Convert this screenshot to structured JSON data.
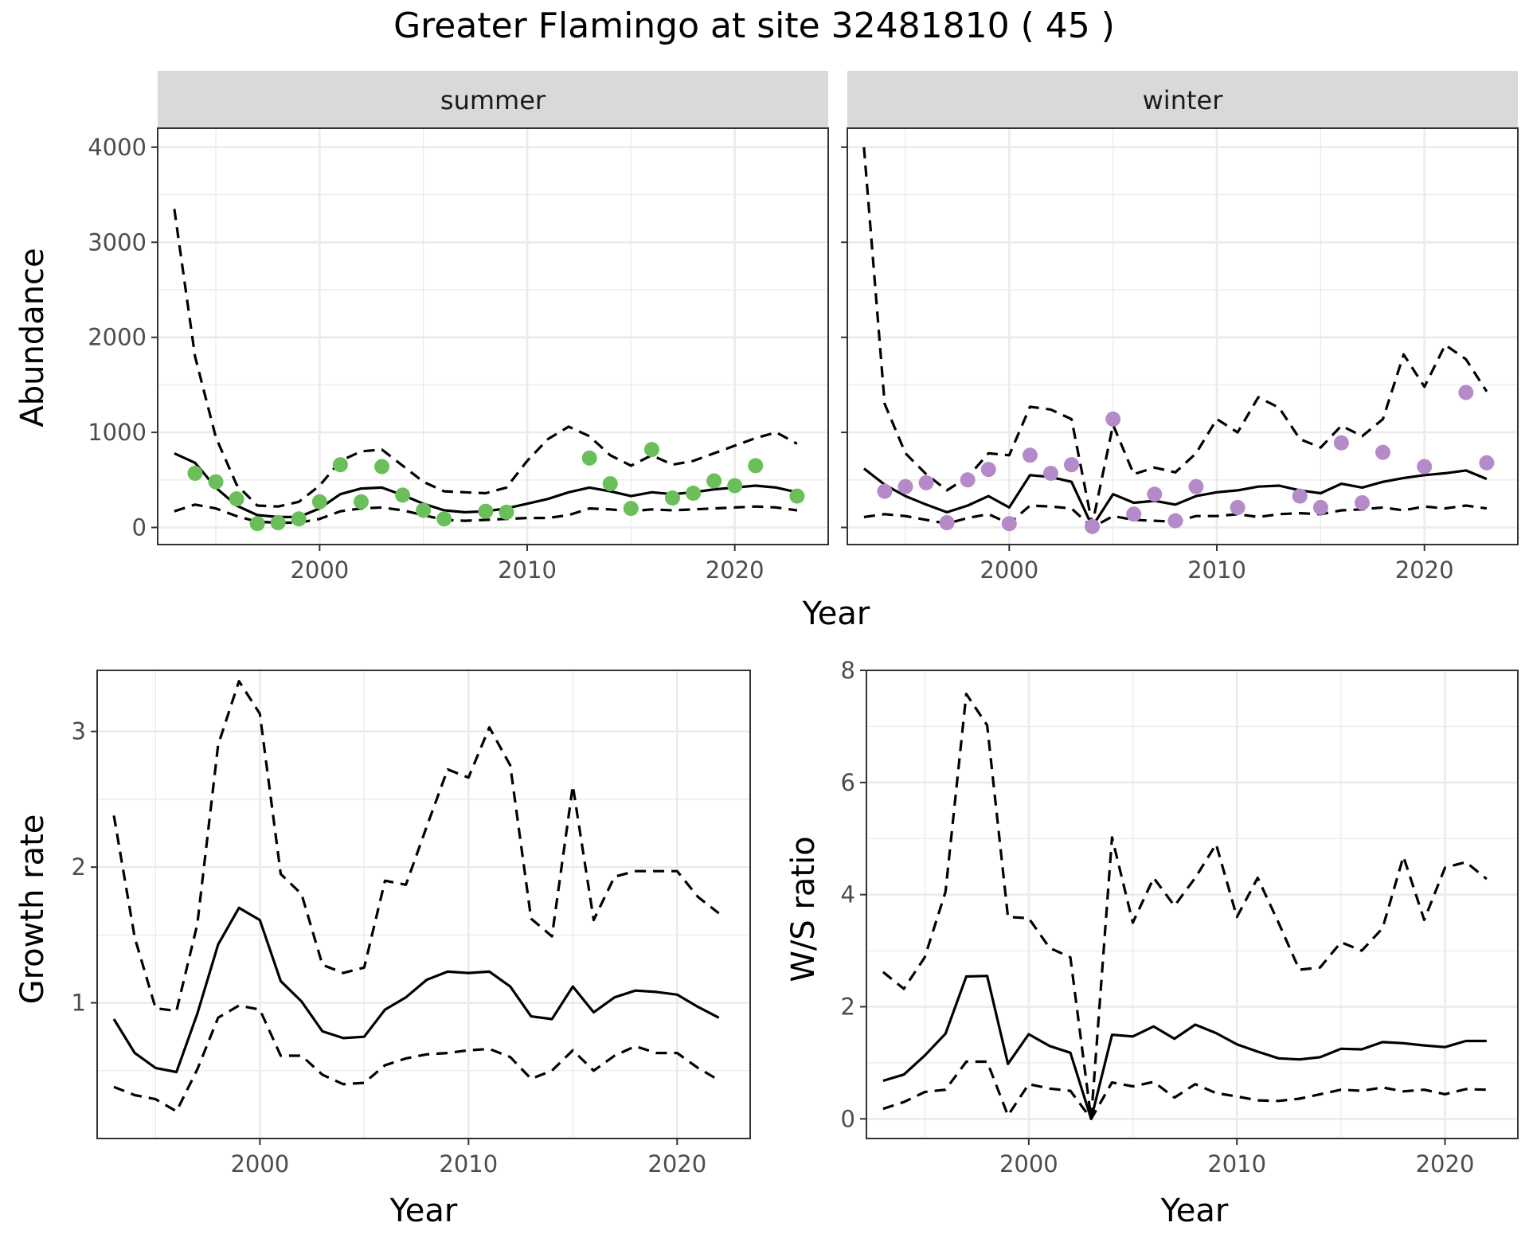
{
  "title": "Greater Flamingo at site 32481810 ( 45 )",
  "colors": {
    "summer": "#6abf5a",
    "winter": "#b58ac9"
  },
  "chart_data": [
    {
      "type": "line",
      "panel": "summer",
      "strip_label": "summer",
      "xlabel": "Year",
      "ylabel": "Abundance",
      "xlim": [
        1992.2,
        2024.5
      ],
      "ylim": [
        -180,
        4200
      ],
      "x_ticks": [
        2000,
        2010,
        2020
      ],
      "y_ticks": [
        0,
        1000,
        2000,
        3000,
        4000
      ],
      "x_ticks_labels": [
        "2000",
        "2010",
        "2020"
      ],
      "y_ticks_labels": [
        "0",
        "1000",
        "2000",
        "3000",
        "4000"
      ],
      "grid": true,
      "x": [
        1993,
        1994,
        1995,
        1996,
        1997,
        1998,
        1999,
        2000,
        2001,
        2002,
        2003,
        2004,
        2005,
        2006,
        2007,
        2008,
        2009,
        2010,
        2011,
        2012,
        2013,
        2014,
        2015,
        2016,
        2017,
        2018,
        2019,
        2020,
        2021,
        2022,
        2023
      ],
      "series": [
        {
          "name": "estimate",
          "style": "solid",
          "values": [
            780,
            680,
            420,
            230,
            130,
            110,
            110,
            200,
            350,
            410,
            420,
            340,
            250,
            180,
            160,
            170,
            200,
            250,
            300,
            370,
            420,
            380,
            330,
            370,
            350,
            370,
            400,
            420,
            440,
            420,
            370
          ]
        },
        {
          "name": "upper",
          "style": "dashed",
          "values": [
            3350,
            1800,
            950,
            450,
            230,
            220,
            270,
            440,
            700,
            800,
            820,
            650,
            480,
            380,
            370,
            360,
            420,
            700,
            930,
            1060,
            960,
            760,
            650,
            760,
            660,
            700,
            780,
            860,
            940,
            1000,
            880
          ]
        },
        {
          "name": "lower",
          "style": "dashed",
          "values": [
            170,
            240,
            200,
            120,
            60,
            50,
            50,
            90,
            170,
            200,
            210,
            180,
            130,
            80,
            70,
            80,
            90,
            100,
            100,
            130,
            200,
            190,
            170,
            190,
            180,
            190,
            200,
            210,
            220,
            210,
            180
          ]
        }
      ],
      "points": [
        {
          "x": 1994,
          "y": 570
        },
        {
          "x": 1995,
          "y": 480
        },
        {
          "x": 1996,
          "y": 300
        },
        {
          "x": 1997,
          "y": 40
        },
        {
          "x": 1998,
          "y": 50
        },
        {
          "x": 1999,
          "y": 90
        },
        {
          "x": 2000,
          "y": 270
        },
        {
          "x": 2001,
          "y": 660
        },
        {
          "x": 2002,
          "y": 270
        },
        {
          "x": 2003,
          "y": 640
        },
        {
          "x": 2004,
          "y": 340
        },
        {
          "x": 2005,
          "y": 180
        },
        {
          "x": 2006,
          "y": 90
        },
        {
          "x": 2008,
          "y": 170
        },
        {
          "x": 2009,
          "y": 160
        },
        {
          "x": 2013,
          "y": 730
        },
        {
          "x": 2014,
          "y": 460
        },
        {
          "x": 2015,
          "y": 200
        },
        {
          "x": 2016,
          "y": 820
        },
        {
          "x": 2017,
          "y": 310
        },
        {
          "x": 2018,
          "y": 360
        },
        {
          "x": 2019,
          "y": 490
        },
        {
          "x": 2020,
          "y": 440
        },
        {
          "x": 2021,
          "y": 650
        },
        {
          "x": 2023,
          "y": 330
        }
      ]
    },
    {
      "type": "line",
      "panel": "winter",
      "strip_label": "winter",
      "xlabel": "Year",
      "ylabel": "",
      "xlim": [
        1992.2,
        2024.5
      ],
      "ylim": [
        -180,
        4200
      ],
      "x_ticks": [
        2000,
        2010,
        2020
      ],
      "y_ticks": [
        0,
        1000,
        2000,
        3000,
        4000
      ],
      "x_ticks_labels": [
        "2000",
        "2010",
        "2020"
      ],
      "y_ticks_labels": [],
      "grid": true,
      "x": [
        1993,
        1994,
        1995,
        1996,
        1997,
        1998,
        1999,
        2000,
        2001,
        2002,
        2003,
        2004,
        2005,
        2006,
        2007,
        2008,
        2009,
        2010,
        2011,
        2012,
        2013,
        2014,
        2015,
        2016,
        2017,
        2018,
        2019,
        2020,
        2021,
        2022,
        2023
      ],
      "series": [
        {
          "name": "estimate",
          "style": "solid",
          "values": [
            620,
            450,
            330,
            240,
            160,
            230,
            330,
            210,
            550,
            530,
            480,
            10,
            350,
            260,
            280,
            240,
            330,
            370,
            390,
            430,
            440,
            390,
            360,
            460,
            420,
            480,
            520,
            550,
            570,
            600,
            510
          ]
        },
        {
          "name": "upper",
          "style": "dashed",
          "values": [
            4000,
            1300,
            780,
            560,
            390,
            530,
            780,
            760,
            1270,
            1240,
            1140,
            30,
            1080,
            560,
            630,
            580,
            780,
            1140,
            1000,
            1370,
            1260,
            930,
            840,
            1070,
            960,
            1140,
            1820,
            1480,
            1920,
            1770,
            1430
          ]
        },
        {
          "name": "lower",
          "style": "dashed",
          "values": [
            110,
            140,
            120,
            80,
            40,
            100,
            140,
            40,
            230,
            220,
            200,
            0,
            120,
            80,
            70,
            60,
            120,
            120,
            140,
            110,
            140,
            150,
            140,
            180,
            190,
            210,
            180,
            220,
            200,
            230,
            200
          ]
        }
      ],
      "points": [
        {
          "x": 1994,
          "y": 380
        },
        {
          "x": 1995,
          "y": 430
        },
        {
          "x": 1996,
          "y": 470
        },
        {
          "x": 1997,
          "y": 50
        },
        {
          "x": 1998,
          "y": 500
        },
        {
          "x": 1999,
          "y": 610
        },
        {
          "x": 2000,
          "y": 40
        },
        {
          "x": 2001,
          "y": 760
        },
        {
          "x": 2002,
          "y": 570
        },
        {
          "x": 2003,
          "y": 660
        },
        {
          "x": 2004,
          "y": 10
        },
        {
          "x": 2005,
          "y": 1140
        },
        {
          "x": 2006,
          "y": 140
        },
        {
          "x": 2007,
          "y": 350
        },
        {
          "x": 2008,
          "y": 70
        },
        {
          "x": 2009,
          "y": 430
        },
        {
          "x": 2011,
          "y": 210
        },
        {
          "x": 2014,
          "y": 330
        },
        {
          "x": 2015,
          "y": 210
        },
        {
          "x": 2016,
          "y": 890
        },
        {
          "x": 2017,
          "y": 260
        },
        {
          "x": 2018,
          "y": 790
        },
        {
          "x": 2020,
          "y": 640
        },
        {
          "x": 2022,
          "y": 1420
        },
        {
          "x": 2023,
          "y": 680
        }
      ]
    },
    {
      "type": "line",
      "panel": "growth",
      "xlabel": "Year",
      "ylabel": "Growth rate",
      "xlim": [
        1992.2,
        2023.5
      ],
      "ylim": [
        0.0,
        3.45
      ],
      "x_ticks": [
        2000,
        2010,
        2020
      ],
      "y_ticks": [
        1,
        2,
        3
      ],
      "x_ticks_labels": [
        "2000",
        "2010",
        "2020"
      ],
      "y_ticks_labels": [
        "1",
        "2",
        "3"
      ],
      "grid": true,
      "x": [
        1993,
        1994,
        1995,
        1996,
        1997,
        1998,
        1999,
        2000,
        2001,
        2002,
        2003,
        2004,
        2005,
        2006,
        2007,
        2008,
        2009,
        2010,
        2011,
        2012,
        2013,
        2014,
        2015,
        2016,
        2017,
        2018,
        2019,
        2020,
        2021,
        2022
      ],
      "series": [
        {
          "name": "estimate",
          "style": "solid",
          "values": [
            0.88,
            0.63,
            0.52,
            0.49,
            0.92,
            1.43,
            1.7,
            1.61,
            1.16,
            1.01,
            0.79,
            0.74,
            0.75,
            0.95,
            1.04,
            1.17,
            1.23,
            1.22,
            1.23,
            1.12,
            0.9,
            0.88,
            1.12,
            0.93,
            1.04,
            1.09,
            1.08,
            1.06,
            0.97,
            0.89
          ]
        },
        {
          "name": "upper",
          "style": "dashed",
          "values": [
            2.38,
            1.48,
            0.96,
            0.94,
            1.58,
            2.9,
            3.37,
            3.13,
            1.95,
            1.8,
            1.28,
            1.22,
            1.26,
            1.9,
            1.87,
            2.3,
            2.72,
            2.66,
            3.03,
            2.75,
            1.62,
            1.49,
            2.6,
            1.61,
            1.93,
            1.97,
            1.97,
            1.97,
            1.78,
            1.66
          ]
        },
        {
          "name": "lower",
          "style": "dashed",
          "values": [
            0.38,
            0.32,
            0.29,
            0.2,
            0.51,
            0.89,
            0.98,
            0.95,
            0.61,
            0.61,
            0.47,
            0.4,
            0.41,
            0.54,
            0.59,
            0.62,
            0.63,
            0.65,
            0.66,
            0.6,
            0.44,
            0.5,
            0.65,
            0.5,
            0.61,
            0.68,
            0.63,
            0.63,
            0.52,
            0.43
          ]
        }
      ]
    },
    {
      "type": "line",
      "panel": "ws_ratio",
      "xlabel": "Year",
      "ylabel": "W/S ratio",
      "xlim": [
        1992.2,
        2023.5
      ],
      "ylim": [
        -0.35,
        8.0
      ],
      "x_ticks": [
        2000,
        2010,
        2020
      ],
      "y_ticks": [
        0,
        2,
        4,
        6,
        8
      ],
      "x_ticks_labels": [
        "2000",
        "2010",
        "2020"
      ],
      "y_ticks_labels": [
        "0",
        "2",
        "4",
        "6",
        "8"
      ],
      "grid": true,
      "x": [
        1993,
        1994,
        1995,
        1996,
        1997,
        1998,
        1999,
        2000,
        2001,
        2002,
        2003,
        2004,
        2005,
        2006,
        2007,
        2008,
        2009,
        2010,
        2011,
        2012,
        2013,
        2014,
        2015,
        2016,
        2017,
        2018,
        2019,
        2020,
        2021,
        2022
      ],
      "series": [
        {
          "name": "estimate",
          "style": "solid",
          "values": [
            0.68,
            0.79,
            1.13,
            1.52,
            2.54,
            2.55,
            0.98,
            1.51,
            1.3,
            1.18,
            0.0,
            1.5,
            1.47,
            1.65,
            1.43,
            1.68,
            1.53,
            1.33,
            1.2,
            1.08,
            1.06,
            1.1,
            1.25,
            1.24,
            1.37,
            1.35,
            1.31,
            1.28,
            1.39,
            1.39
          ]
        },
        {
          "name": "upper",
          "style": "dashed",
          "values": [
            2.62,
            2.32,
            2.88,
            4.05,
            7.58,
            7.02,
            3.6,
            3.58,
            3.05,
            2.88,
            0.0,
            5.02,
            3.5,
            4.3,
            3.8,
            4.3,
            4.9,
            3.6,
            4.3,
            3.5,
            2.66,
            2.7,
            3.15,
            3.0,
            3.4,
            4.68,
            3.55,
            4.48,
            4.58,
            4.28
          ]
        },
        {
          "name": "lower",
          "style": "dashed",
          "values": [
            0.18,
            0.3,
            0.48,
            0.52,
            1.02,
            1.02,
            0.06,
            0.62,
            0.54,
            0.5,
            0.0,
            0.65,
            0.58,
            0.66,
            0.38,
            0.62,
            0.46,
            0.4,
            0.33,
            0.32,
            0.36,
            0.44,
            0.52,
            0.5,
            0.56,
            0.49,
            0.52,
            0.44,
            0.53,
            0.52
          ]
        }
      ]
    }
  ]
}
